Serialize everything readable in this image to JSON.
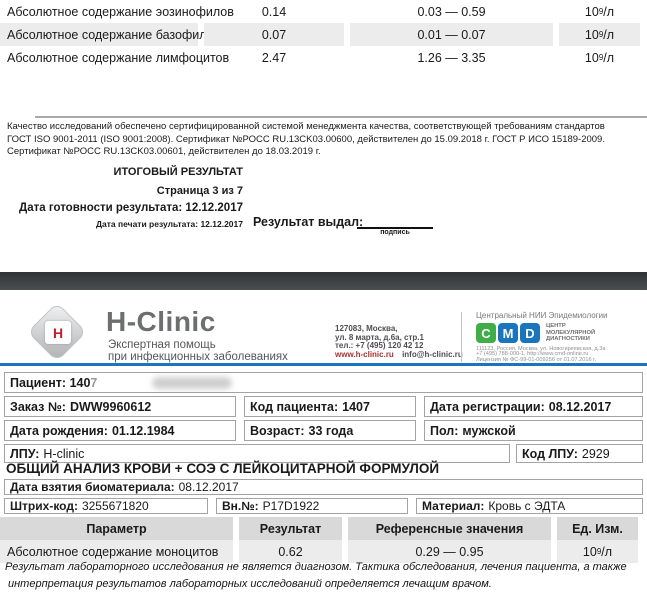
{
  "colors": {
    "accent_blue": "#1b75bc",
    "cmd_green": "#3fae49",
    "cmd_blue": "#1b75bc",
    "logo_red": "#be1e2d",
    "table_header_grey": "#d9d9d9",
    "row_stripe_grey": "#ececec",
    "separator_dark": "#3c4043"
  },
  "page3": {
    "table": {
      "rows": [
        {
          "param": "Абсолютное содержание эозинофилов",
          "result": "0.14",
          "reference": "0.03 — 0.59",
          "unit_base": "10",
          "unit_exp": "9",
          "unit_den": "/л",
          "shaded": false
        },
        {
          "param": "Абсолютное содержание базофилов",
          "result": "0.07",
          "reference": "0.01 — 0.07",
          "unit_base": "10",
          "unit_exp": "9",
          "unit_den": "/л",
          "shaded": true
        },
        {
          "param": "Абсолютное содержание лимфоцитов",
          "result": "2.47",
          "reference": "1.26 — 3.35",
          "unit_base": "10",
          "unit_exp": "9",
          "unit_den": "/л",
          "shaded": false
        }
      ]
    },
    "quality_lines": [
      "Качество исследований обеспечено сертифицированной системой менеджмента качества, соответствующей требованиям стандартов",
      "ГОСТ ISO 9001-2011 (ISO 9001:2008). Сертификат №РОСС RU.13CK03.00600, действителен до 15.09.2018 г. ГОСТ Р ИСО 15189-2009.",
      "Сертификат №РОСС RU.13CK03.00601, действителен до 18.03.2019 г."
    ],
    "final_result": "ИТОГОВЫЙ РЕЗУЛЬТАТ",
    "page_info": "Страница 3 из 7",
    "ready_date": "Дата готовности результата: 12.12.2017",
    "print_date": "Дата печати результата: 12.12.2017",
    "issued_by": "Результат выдал:",
    "signature_caption": "подпись"
  },
  "page4": {
    "header": {
      "brand": "H-Clinic",
      "brand_letter": "H",
      "tagline1": "Экспертная помощь",
      "tagline2": "при инфекционных заболеваниях",
      "address_line1": "127083, Москва,",
      "address_line2": "ул. 8 марта, д.6а, стр.1",
      "address_line3": "тел.: +7 (495) 120 42 12",
      "website": "www.h-clinic.ru",
      "email": "info@h-clinic.ru",
      "cmd_title": "Центральный НИИ Эпидемиологии",
      "cmd_letter1": "C",
      "cmd_letter2": "M",
      "cmd_letter3": "D",
      "cmd_caption1": "ЦЕНТР",
      "cmd_caption2": "МОЛЕКУЛЯРНОЙ",
      "cmd_caption3": "ДИАГНОСТИКИ",
      "cmd_info1": "111123, Россия, Москва, ул. Новогиреевская, д.3а",
      "cmd_info2": "+7 (495) 788-000-1, http://www.cmd-online.ru",
      "cmd_info3": "Лицензия № ФС-99-01-009256 от 01.07.2016 г."
    },
    "patient": {
      "patient_main": "Пациент: 140",
      "patient_faded": "7",
      "order_label": "Заказ №:",
      "order_value": "DWW9960612",
      "code_label": "Код пациента:",
      "code_value": "1407",
      "reg_label": "Дата регистрации:",
      "reg_value": "08.12.2017",
      "birth_label": "Дата рождения:",
      "birth_value": "01.12.1984",
      "age_label": "Возраст:",
      "age_value": "33 года",
      "sex_label": "Пол:",
      "sex_value": "мужской",
      "lpu_label": "ЛПУ:",
      "lpu_value": "H-clinic",
      "lpu_code_label": "Код ЛПУ:",
      "lpu_code_value": "2929",
      "biomaterial_label": "Дата взятия биоматериала:",
      "biomaterial_value": "08.12.2017",
      "barcode_label": "Штрих-код:",
      "barcode_value": "3255671820",
      "internal_label": "Вн.№:",
      "internal_value": "P17D1922",
      "material_label": "Материал:",
      "material_value": "Кровь с ЭДТА"
    },
    "analysis_title": "ОБЩИЙ АНАЛИЗ КРОВИ + СОЭ С ЛЕЙКОЦИТАРНОЙ ФОРМУЛОЙ",
    "table": {
      "headers": [
        "Параметр",
        "Результат",
        "Референсные значения",
        "Ед. Изм."
      ],
      "rows": [
        {
          "param": "Абсолютное содержание моноцитов",
          "result": "0.62",
          "reference": "0.29 — 0.95",
          "unit_base": "10",
          "unit_exp": "9",
          "unit_den": "/л",
          "shaded": true
        }
      ]
    },
    "disclaimer_line1": "Результат лабораторного исследования не является диагнозом. Тактика обследования, лечения пациента, а также",
    "disclaimer_line2": "интерпретация результатов лабораторных исследований определяется лечащим врачом."
  }
}
